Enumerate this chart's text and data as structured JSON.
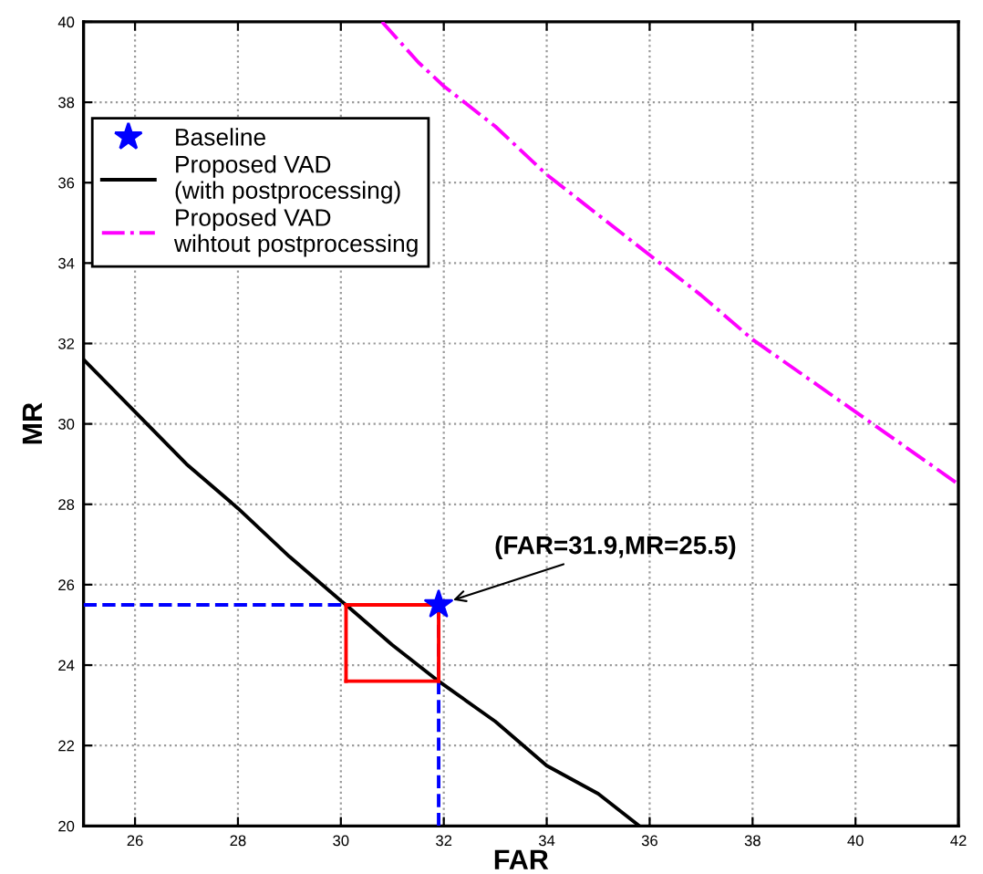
{
  "chart_data": {
    "type": "line",
    "xlabel": "FAR",
    "ylabel": "MR",
    "xlim": [
      25,
      42
    ],
    "ylim": [
      20,
      40
    ],
    "xticks": [
      26,
      28,
      30,
      32,
      34,
      36,
      38,
      40,
      42
    ],
    "yticks": [
      20,
      22,
      24,
      26,
      28,
      30,
      32,
      34,
      36,
      38,
      40
    ],
    "grid": true,
    "legend": "top left",
    "series": [
      {
        "name": "Baseline",
        "type": "scatter",
        "marker": "star",
        "color": "#0000ff",
        "x": [
          31.9
        ],
        "values": [
          25.5
        ]
      },
      {
        "name": "Proposed VAD\n(with postprocessing)",
        "line_style": "solid",
        "color": "#000000",
        "x": [
          25,
          26,
          27,
          28,
          29,
          30,
          30.1,
          31,
          31.9,
          33,
          34,
          35,
          35.8
        ],
        "values": [
          31.6,
          30.3,
          29.0,
          27.9,
          26.7,
          25.6,
          25.5,
          24.5,
          23.6,
          22.6,
          21.5,
          20.8,
          20
        ]
      },
      {
        "name": "Proposed VAD\nwihtout postprocessing",
        "line_style": "dashdot",
        "color": "#ff00ff",
        "x": [
          30.8,
          31.5,
          32,
          33,
          34,
          35,
          36,
          37,
          38,
          39,
          40,
          41,
          42
        ],
        "values": [
          40,
          39,
          38.4,
          37.4,
          36.2,
          35.2,
          34.2,
          33.2,
          32.1,
          31.2,
          30.3,
          29.4,
          28.5
        ]
      },
      {
        "line_style": "dashed",
        "color": "#0000ff",
        "x": [
          25,
          31.9
        ],
        "values": [
          25.5,
          25.5
        ]
      },
      {
        "line_style": "dashed",
        "color": "#0000ff",
        "x": [
          31.9,
          31.9
        ],
        "values": [
          20,
          25.5
        ]
      },
      {
        "line_style": "solid",
        "color": "#ff0000",
        "x": [
          30.1,
          31.9
        ],
        "values": [
          25.5,
          25.5
        ]
      },
      {
        "line_style": "solid",
        "color": "#ff0000",
        "x": [
          30.1,
          31.9
        ],
        "values": [
          23.6,
          23.6
        ]
      },
      {
        "line_style": "solid",
        "color": "#ff0000",
        "x": [
          30.1,
          30.1
        ],
        "values": [
          23.6,
          25.5
        ]
      },
      {
        "line_style": "solid",
        "color": "#ff0000",
        "x": [
          31.9,
          31.9
        ],
        "values": [
          23.6,
          25.5
        ]
      }
    ],
    "annotations": [
      {
        "text": "(FAR=31.9,MR=25.5)",
        "x": 31.9,
        "y": 25.5
      }
    ]
  }
}
